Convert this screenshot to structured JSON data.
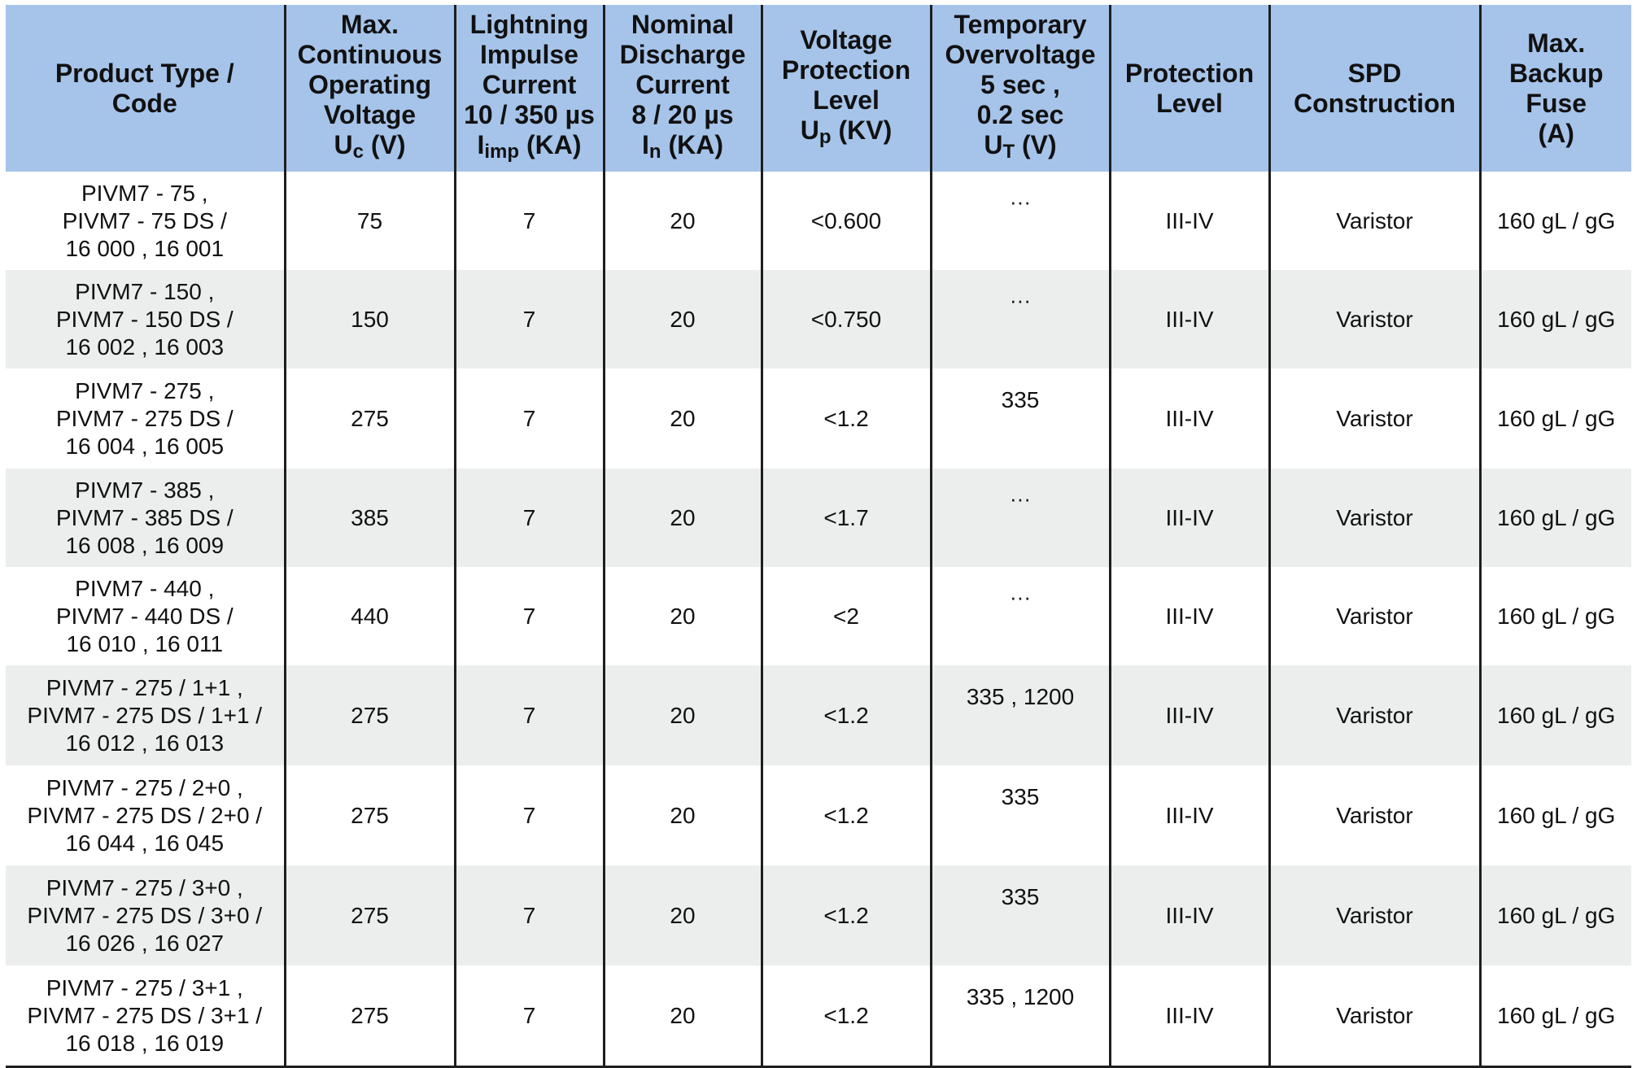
{
  "headers": [
    {
      "lines": [
        "Product Type /",
        "Code"
      ]
    },
    {
      "lines": [
        "Max.",
        "Continuous",
        "Operating",
        "Voltage"
      ],
      "sym": "U",
      "sub": "c",
      "unit": " (V)"
    },
    {
      "lines": [
        "Lightning",
        "Impulse",
        "Current",
        "10 / 350 µs"
      ],
      "sym": "I",
      "sub": "imp",
      "unit": " (KA)"
    },
    {
      "lines": [
        "Nominal",
        "Discharge",
        "Current",
        "8 / 20 µs"
      ],
      "sym": "I",
      "sub": "n",
      "unit": " (KA)"
    },
    {
      "lines": [
        "Voltage",
        "Protection",
        "Level"
      ],
      "sym": "U",
      "sub": "p",
      "unit": " (KV)"
    },
    {
      "lines": [
        "Temporary",
        "Overvoltage",
        "5 sec ,",
        "0.2 sec"
      ],
      "sym": "U",
      "sub": "T",
      "unit": " (V)"
    },
    {
      "lines": [
        "Protection",
        "Level"
      ]
    },
    {
      "lines": [
        "SPD",
        "Construction"
      ]
    },
    {
      "lines": [
        "Max.",
        "Backup",
        "Fuse",
        "(A)"
      ]
    }
  ],
  "rows": [
    {
      "product": [
        "PIVM7 - 75 ,",
        "PIVM7 - 75 DS /",
        "16 000 , 16 001"
      ],
      "uc": "75",
      "iimp": "7",
      "in": "20",
      "up": "<0.600",
      "ut": "···",
      "level": "III-IV",
      "construction": "Varistor",
      "fuse": "160 gL / gG"
    },
    {
      "product": [
        "PIVM7 - 150 ,",
        "PIVM7 - 150 DS /",
        "16 002 , 16 003"
      ],
      "uc": "150",
      "iimp": "7",
      "in": "20",
      "up": "<0.750",
      "ut": "···",
      "level": "III-IV",
      "construction": "Varistor",
      "fuse": "160 gL / gG"
    },
    {
      "product": [
        "PIVM7 - 275 ,",
        "PIVM7 - 275 DS /",
        "16 004 , 16 005"
      ],
      "uc": "275",
      "iimp": "7",
      "in": "20",
      "up": "<1.2",
      "ut": "335",
      "level": "III-IV",
      "construction": "Varistor",
      "fuse": "160 gL / gG"
    },
    {
      "product": [
        "PIVM7 - 385 ,",
        "PIVM7 - 385 DS /",
        "16 008 , 16 009"
      ],
      "uc": "385",
      "iimp": "7",
      "in": "20",
      "up": "<1.7",
      "ut": "···",
      "level": "III-IV",
      "construction": "Varistor",
      "fuse": "160 gL / gG"
    },
    {
      "product": [
        "PIVM7 - 440 ,",
        "PIVM7 - 440 DS /",
        "16 010 , 16 011"
      ],
      "uc": "440",
      "iimp": "7",
      "in": "20",
      "up": "<2",
      "ut": "···",
      "level": "III-IV",
      "construction": "Varistor",
      "fuse": "160 gL / gG"
    },
    {
      "product": [
        "PIVM7 - 275 / 1+1 ,",
        "PIVM7 - 275 DS / 1+1 /",
        "16 012 , 16 013"
      ],
      "uc": "275",
      "iimp": "7",
      "in": "20",
      "up": "<1.2",
      "ut": "335 , 1200",
      "level": "III-IV",
      "construction": "Varistor",
      "fuse": "160 gL / gG"
    },
    {
      "product": [
        "PIVM7 - 275 / 2+0 ,",
        "PIVM7 - 275 DS / 2+0 /",
        "16 044 , 16 045"
      ],
      "uc": "275",
      "iimp": "7",
      "in": "20",
      "up": "<1.2",
      "ut": "335",
      "level": "III-IV",
      "construction": "Varistor",
      "fuse": "160 gL / gG"
    },
    {
      "product": [
        "PIVM7 - 275 / 3+0 ,",
        "PIVM7 - 275 DS / 3+0 /",
        "16 026 , 16 027"
      ],
      "uc": "275",
      "iimp": "7",
      "in": "20",
      "up": "<1.2",
      "ut": "335",
      "level": "III-IV",
      "construction": "Varistor",
      "fuse": "160 gL / gG"
    },
    {
      "product": [
        "PIVM7 - 275 / 3+1 ,",
        "PIVM7 - 275 DS / 3+1 /",
        "16 018 , 16 019"
      ],
      "uc": "275",
      "iimp": "7",
      "in": "20",
      "up": "<1.2",
      "ut": "335 , 1200",
      "level": "III-IV",
      "construction": "Varistor",
      "fuse": "160 gL / gG"
    }
  ]
}
